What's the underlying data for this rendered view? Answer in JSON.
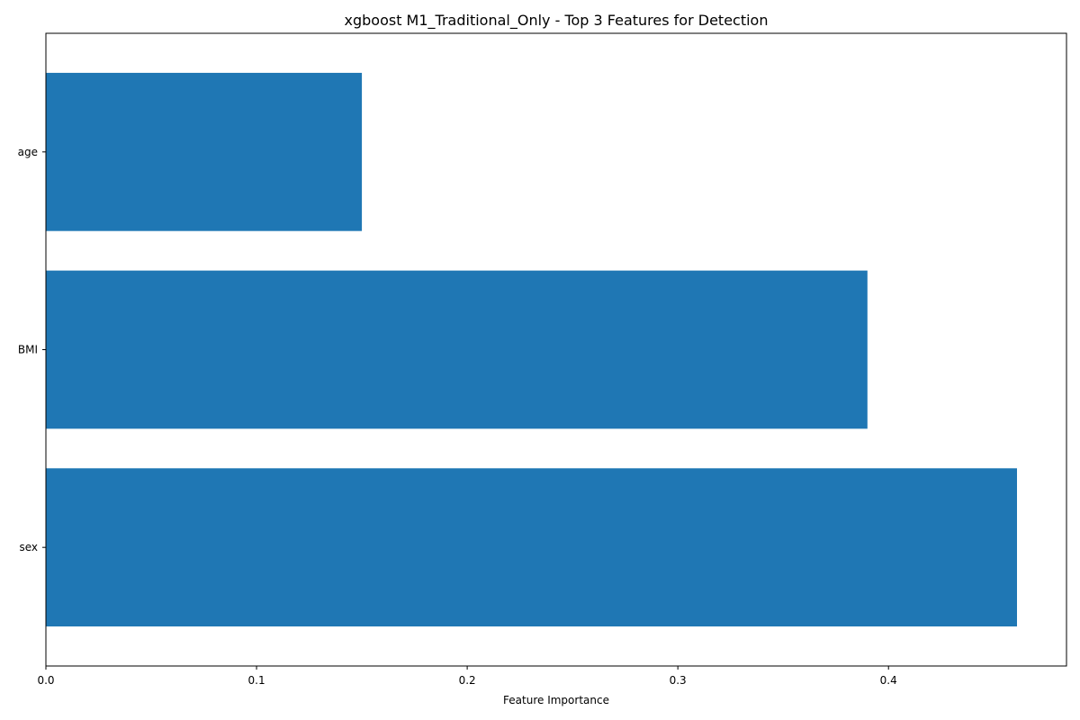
{
  "chart_data": {
    "type": "bar",
    "orientation": "horizontal",
    "title": "xgboost M1_Traditional_Only - Top 3 Features for Detection",
    "xlabel": "Feature Importance",
    "ylabel": "",
    "categories": [
      "sex",
      "BMI",
      "age"
    ],
    "values": [
      0.461,
      0.39,
      0.15
    ],
    "xlim": [
      0,
      0.4845
    ],
    "xticks": [
      0.0,
      0.1,
      0.2,
      0.3,
      0.4
    ],
    "xtick_labels": [
      "0.0",
      "0.1",
      "0.2",
      "0.3",
      "0.4"
    ],
    "grid": false,
    "legend": "none",
    "bar_color": "#1f77b4"
  }
}
